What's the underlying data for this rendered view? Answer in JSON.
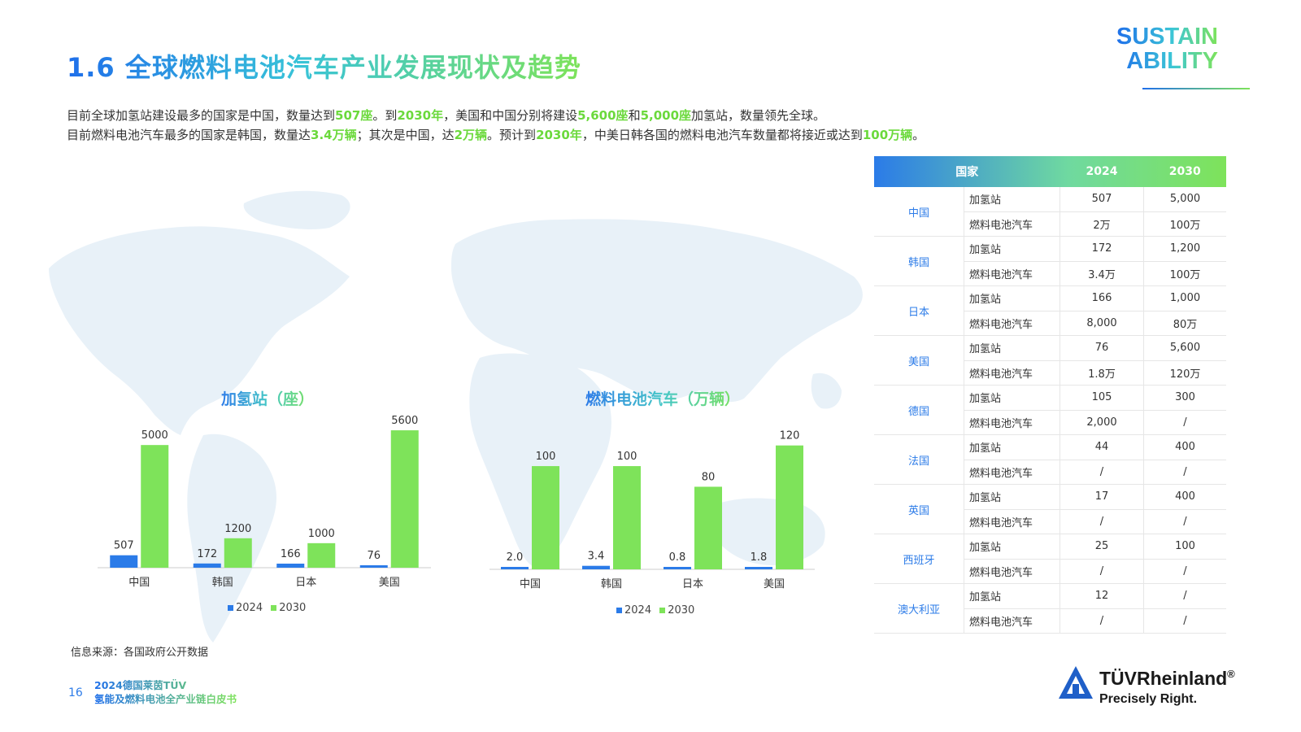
{
  "title": "1.6 全球燃料电池汽车产业发展现状及趋势",
  "intro": {
    "line1": [
      "目前全球加氢站建设最多的国家是中国，数量达到",
      "507座",
      "。到",
      "2030年",
      "，美国和中国分别将建设",
      "5,600座",
      "和",
      "5,000座",
      "加氢站，数量领先全球。"
    ],
    "line2": [
      "目前燃料电池汽车最多的国家是韩国，数量达",
      "3.4万辆",
      "；其次是中国，达",
      "2万辆",
      "。预计到",
      "2030年",
      "，中美日韩各国的燃料电池汽车数量都将接近或达到",
      "100万辆",
      "。"
    ]
  },
  "logo": {
    "line1": "SUSTAIN",
    "line2": "ABILITY"
  },
  "colors": {
    "s2024": "#2b7be8",
    "s2030": "#7ee35a",
    "accent": "#2d7ce8"
  },
  "chart_data": [
    {
      "type": "bar",
      "title": "加氢站（座）",
      "categories": [
        "中国",
        "韩国",
        "日本",
        "美国"
      ],
      "series": [
        {
          "name": "2024",
          "values": [
            507,
            172,
            166,
            76
          ],
          "labels": [
            "507",
            "172",
            "166",
            "76"
          ]
        },
        {
          "name": "2030",
          "values": [
            5000,
            1200,
            1000,
            5600
          ],
          "labels": [
            "5000",
            "1200",
            "1000",
            "5600"
          ]
        }
      ],
      "ylim": [
        0,
        6000
      ],
      "legend": "bottom"
    },
    {
      "type": "bar",
      "title": "燃料电池汽车（万辆）",
      "categories": [
        "中国",
        "韩国",
        "日本",
        "美国"
      ],
      "series": [
        {
          "name": "2024",
          "values": [
            2.0,
            3.4,
            0.8,
            1.8
          ],
          "labels": [
            "2.0",
            "3.4",
            "0.8",
            "1.8"
          ]
        },
        {
          "name": "2030",
          "values": [
            100,
            100,
            80,
            120
          ],
          "labels": [
            "100",
            "100",
            "80",
            "120"
          ]
        }
      ],
      "ylim": [
        0,
        130
      ],
      "legend": "bottom"
    }
  ],
  "table": {
    "headers": [
      "国家",
      "2024",
      "2030"
    ],
    "rows": [
      {
        "country": "中国",
        "items": [
          [
            "加氢站",
            "507",
            "5,000"
          ],
          [
            "燃料电池汽车",
            "2万",
            "100万"
          ]
        ]
      },
      {
        "country": "韩国",
        "items": [
          [
            "加氢站",
            "172",
            "1,200"
          ],
          [
            "燃料电池汽车",
            "3.4万",
            "100万"
          ]
        ]
      },
      {
        "country": "日本",
        "items": [
          [
            "加氢站",
            "166",
            "1,000"
          ],
          [
            "燃料电池汽车",
            "8,000",
            "80万"
          ]
        ]
      },
      {
        "country": "美国",
        "items": [
          [
            "加氢站",
            "76",
            "5,600"
          ],
          [
            "燃料电池汽车",
            "1.8万",
            "120万"
          ]
        ]
      },
      {
        "country": "德国",
        "items": [
          [
            "加氢站",
            "105",
            "300"
          ],
          [
            "燃料电池汽车",
            "2,000",
            "/"
          ]
        ]
      },
      {
        "country": "法国",
        "items": [
          [
            "加氢站",
            "44",
            "400"
          ],
          [
            "燃料电池汽车",
            "/",
            "/"
          ]
        ]
      },
      {
        "country": "英国",
        "items": [
          [
            "加氢站",
            "17",
            "400"
          ],
          [
            "燃料电池汽车",
            "/",
            "/"
          ]
        ]
      },
      {
        "country": "西班牙",
        "items": [
          [
            "加氢站",
            "25",
            "100"
          ],
          [
            "燃料电池汽车",
            "/",
            "/"
          ]
        ]
      },
      {
        "country": "澳大利亚",
        "items": [
          [
            "加氢站",
            "12",
            "/"
          ],
          [
            "燃料电池汽车",
            "/",
            "/"
          ]
        ]
      }
    ]
  },
  "source": "信息来源：各国政府公开数据",
  "footer": {
    "page": "16",
    "book_line1": "2024德国莱茵TÜV",
    "book_line2": "氢能及燃料电池全产业链白皮书"
  },
  "tuv": {
    "name": "TÜVRheinland",
    "reg": "®",
    "slogan": "Precisely Right."
  }
}
